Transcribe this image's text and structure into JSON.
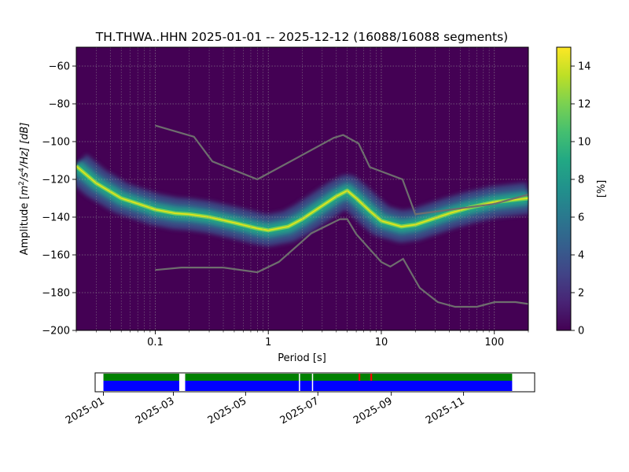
{
  "chart_data": [
    {
      "type": "heatmap",
      "title": "TH.THWA..HHN   2025-01-01 -- 2025-12-12  (16088/16088 segments)",
      "xlabel": "Period [s]",
      "ylabel_prefix": "Amplitude [",
      "ylabel_unit_m": "m",
      "ylabel_unit_m_exp": "2",
      "ylabel_unit_s": "/s",
      "ylabel_unit_s_exp": "4",
      "ylabel_unit_hz": "/Hz] [dB]",
      "x_scale": "log",
      "xlim": [
        0.02,
        200
      ],
      "ylim": [
        -200,
        -50
      ],
      "x_ticks": [
        0.1,
        1,
        10,
        100
      ],
      "x_tick_labels": [
        "0.1",
        "1",
        "10",
        "100"
      ],
      "y_ticks": [
        -200,
        -180,
        -160,
        -140,
        -120,
        -100,
        -80,
        -60
      ],
      "y_tick_labels": [
        "−200",
        "−180",
        "−160",
        "−140",
        "−120",
        "−100",
        "−80",
        "−60"
      ],
      "grid": true,
      "colormap": "viridis",
      "colorbar": {
        "label": "[%]",
        "range": [
          0,
          15
        ],
        "ticks": [
          0,
          2,
          4,
          6,
          8,
          10,
          12,
          14
        ],
        "tick_labels": [
          "0",
          "2",
          "4",
          "6",
          "8",
          "10",
          "12",
          "14"
        ]
      },
      "mode_curve": {
        "period": [
          0.02,
          0.03,
          0.05,
          0.08,
          0.1,
          0.15,
          0.2,
          0.3,
          0.5,
          0.8,
          1,
          1.5,
          2,
          3,
          4,
          5,
          6,
          8,
          10,
          15,
          20,
          40,
          60,
          100,
          200
        ],
        "db": [
          -113,
          -122,
          -130,
          -134,
          -136,
          -138,
          -138.5,
          -140,
          -143,
          -146,
          -147,
          -145,
          -141,
          -134,
          -129,
          -126,
          -130,
          -137,
          -142,
          -145,
          -144,
          -138,
          -135,
          -132,
          -130
        ]
      },
      "low_noise_model": {
        "period": [
          0.1,
          0.17,
          0.4,
          0.8,
          1.24,
          2.4,
          4.3,
          5.0,
          6.0,
          10.0,
          12.0,
          15.6,
          21.9,
          31.6,
          45.0,
          70.0,
          101.0,
          154.0,
          200.0
        ],
        "db": [
          -168,
          -166.7,
          -166.7,
          -169.2,
          -163.7,
          -148.6,
          -141.1,
          -141.1,
          -149.0,
          -163.8,
          -166.2,
          -162.1,
          -177.5,
          -185.0,
          -187.5,
          -187.5,
          -185.0,
          -185.0,
          -186.0
        ]
      },
      "high_noise_model": {
        "period": [
          0.1,
          0.22,
          0.32,
          0.8,
          3.8,
          4.6,
          6.3,
          7.9,
          15.4,
          20.0,
          100.0,
          200.0
        ],
        "db": [
          -91.5,
          -97.4,
          -110.5,
          -120.0,
          -98.0,
          -96.5,
          -101.0,
          -113.5,
          -120.0,
          -138.5,
          -133.0,
          -128.0
        ]
      }
    },
    {
      "type": "timeline",
      "x_tick_labels": [
        "2025-01",
        "2025-03",
        "2025-05",
        "2025-07",
        "2025-09",
        "2025-11"
      ],
      "x_ticks": [
        "2025-01-01",
        "2025-03-01",
        "2025-05-01",
        "2025-07-01",
        "2025-09-01",
        "2025-11-01"
      ],
      "xlim": [
        "2024-12-25",
        "2025-12-31"
      ],
      "data_color": "#0000ff",
      "processed_color": "#008000",
      "gap_color": "#ff0000",
      "coverage_start": "2025-01-01",
      "coverage_end": "2025-12-12",
      "gaps": [
        {
          "start": "2025-03-06",
          "end": "2025-03-11"
        },
        {
          "start": "2025-06-15",
          "end": "2025-06-16"
        },
        {
          "start": "2025-06-26",
          "end": "2025-06-27"
        }
      ],
      "red_marks": [
        "2025-08-05",
        "2025-08-15"
      ]
    }
  ]
}
